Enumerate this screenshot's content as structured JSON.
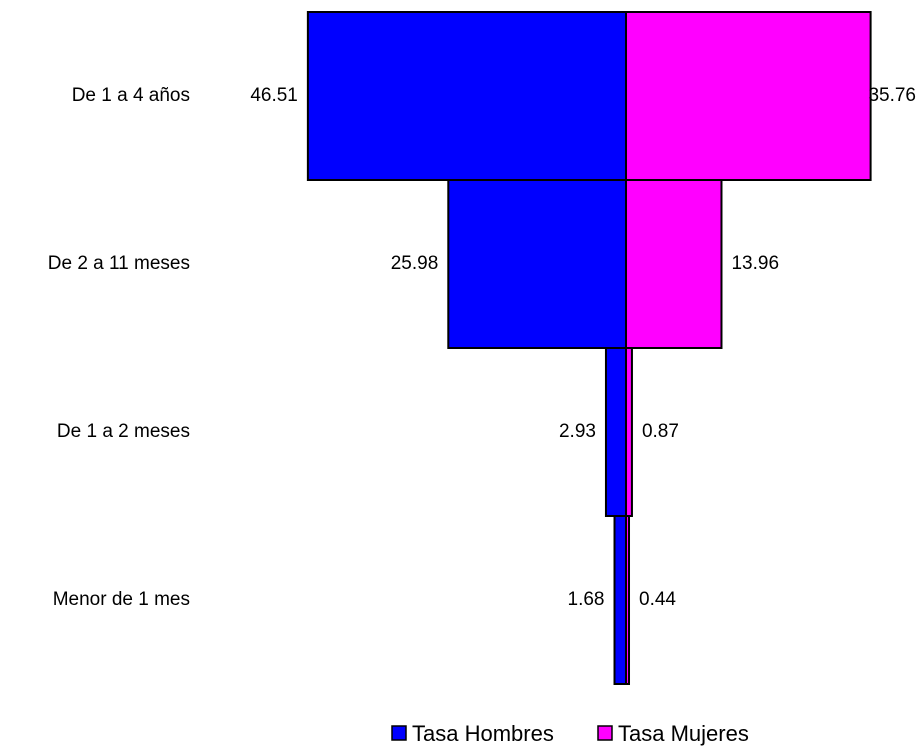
{
  "chart_data": {
    "type": "bar",
    "orientation": "horizontal-pyramid",
    "categories": [
      "De 1 a 4 años",
      "De 2 a 11 meses",
      "De 1 a 2 meses",
      "Menor de 1 mes"
    ],
    "series": [
      {
        "name": "Tasa Hombres",
        "values": [
          46.51,
          25.98,
          2.93,
          1.68
        ],
        "labels": [
          "46.51",
          "25.98",
          "2.93",
          "1.68"
        ],
        "color": "#0000ff",
        "side": "left"
      },
      {
        "name": "Tasa Mujeres",
        "values": [
          35.76,
          13.96,
          0.87,
          0.44
        ],
        "labels": [
          "35.76",
          "13.96",
          "0.87",
          "0.44"
        ],
        "color": "#ff00ff",
        "side": "right"
      }
    ],
    "legend_position": "bottom",
    "grid": false
  }
}
